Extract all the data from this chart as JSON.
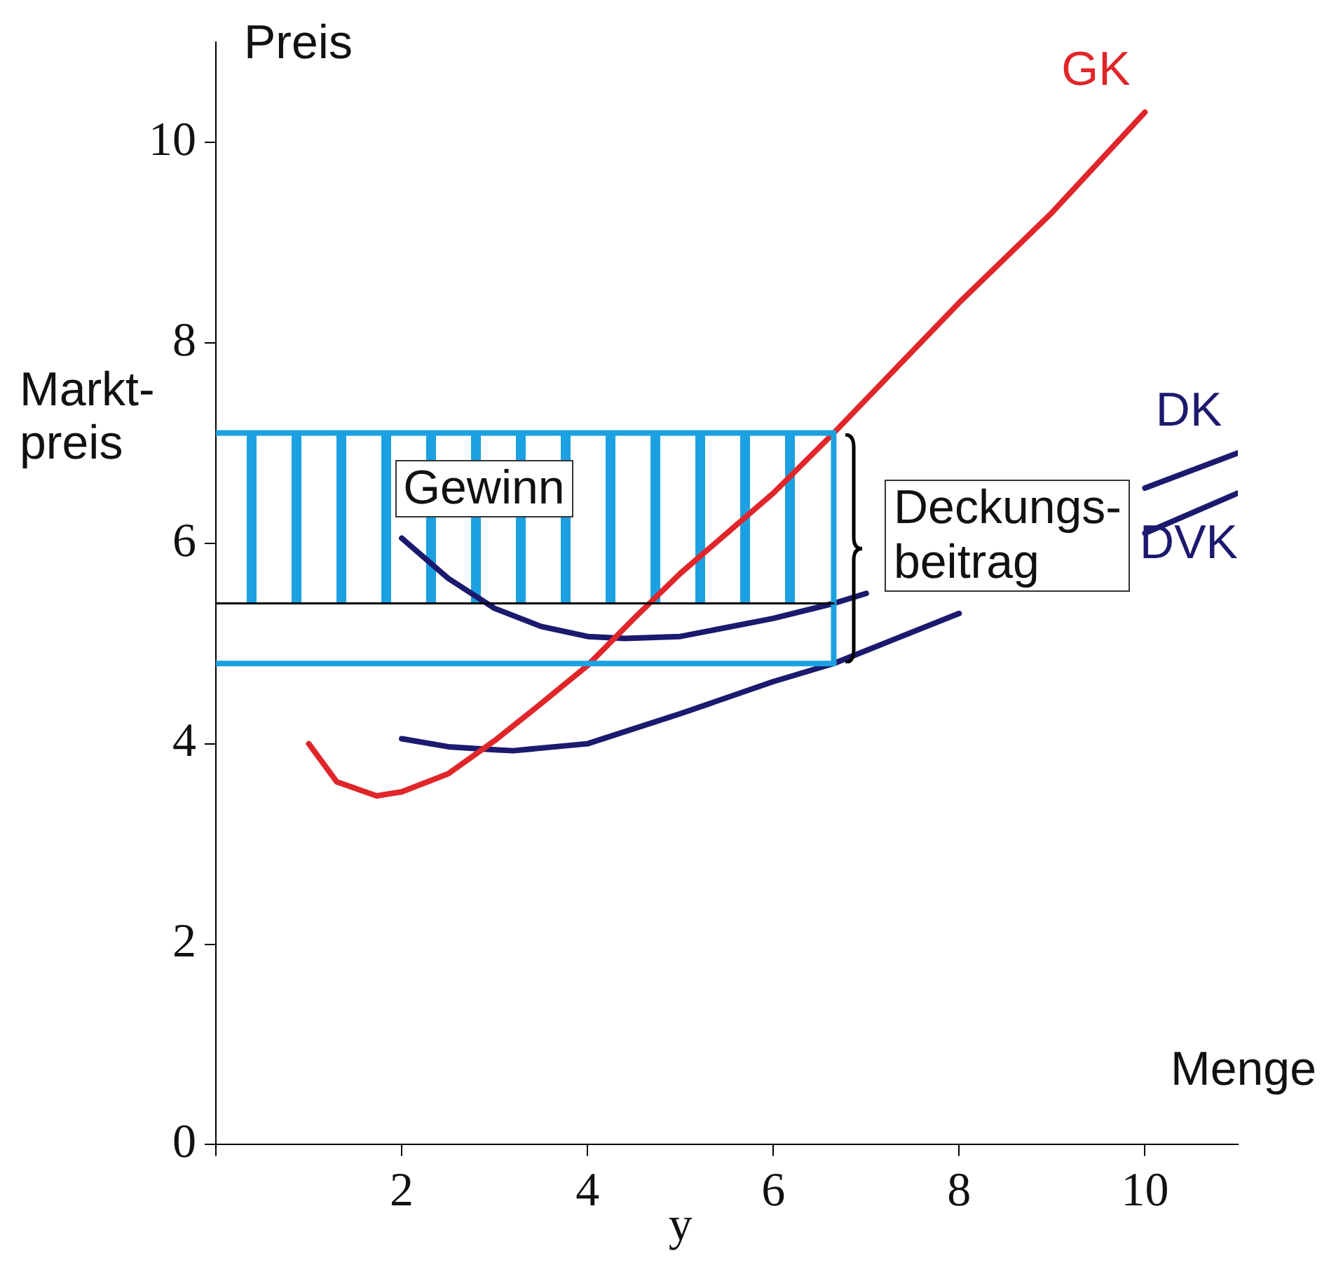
{
  "chart_data": {
    "type": "line",
    "ylabel": "Preis",
    "xlabel": "y",
    "xlim": [
      0,
      11
    ],
    "ylim": [
      0,
      11
    ],
    "xticks": [
      {
        "value": 0,
        "label": null
      },
      2,
      4,
      6,
      8,
      10
    ],
    "yticks": [
      0,
      2,
      4,
      6,
      8,
      10
    ],
    "grid": false,
    "legend": false,
    "marker": "none",
    "series": [
      {
        "color": "#1ba1e2",
        "x": [
          0,
          6.65
        ],
        "values": [
          4.8,
          4.8
        ]
      },
      {
        "color": "#000000",
        "x": [
          0,
          6.65
        ],
        "values": [
          5.4,
          5.4
        ]
      },
      {
        "color": "#1ba1e2",
        "x": [
          0,
          6.65
        ],
        "values": [
          7.1,
          7.1
        ]
      },
      {
        "color": "#1ba1e2",
        "x": [
          6.65,
          6.65
        ],
        "values": [
          7.1,
          4.8
        ]
      },
      {
        "name": "GK",
        "color": "#e0262a",
        "x": [
          1,
          1.3,
          1.73,
          2,
          2.5,
          3,
          3.5,
          4,
          4.5,
          5,
          6,
          6.65,
          8,
          9,
          10
        ],
        "values": [
          4.0,
          3.62,
          3.48,
          3.52,
          3.7,
          4.03,
          4.4,
          4.78,
          5.25,
          5.7,
          6.5,
          7.1,
          8.4,
          9.3,
          10.3
        ]
      },
      {
        "name": "DK",
        "color": "#1c1a6e",
        "x": [
          2,
          2.5,
          3,
          3.5,
          4,
          4.4,
          5,
          6,
          6.65,
          7,
          8,
          9,
          10,
          11
        ],
        "values": [
          6.05,
          5.65,
          5.35,
          5.17,
          5.07,
          5.05,
          5.07,
          5.25,
          5.4,
          5.5,
          null,
          null,
          6.55,
          6.9
        ]
      },
      {
        "name": "DVK",
        "color": "#1c1a6e",
        "x": [
          2,
          2.5,
          3,
          3.2,
          4,
          5,
          6,
          6.65,
          7,
          8,
          9,
          10,
          11
        ],
        "values": [
          4.05,
          3.97,
          3.94,
          3.93,
          4.0,
          4.3,
          4.62,
          4.8,
          4.93,
          5.3,
          null,
          6.1,
          6.5
        ]
      }
    ],
    "annotations": [
      {
        "text": "Markt-\npreis",
        "x": 0,
        "y": 7.1
      },
      "Gewinn",
      "Deckungs-\nbeitrag",
      "Menge"
    ]
  }
}
